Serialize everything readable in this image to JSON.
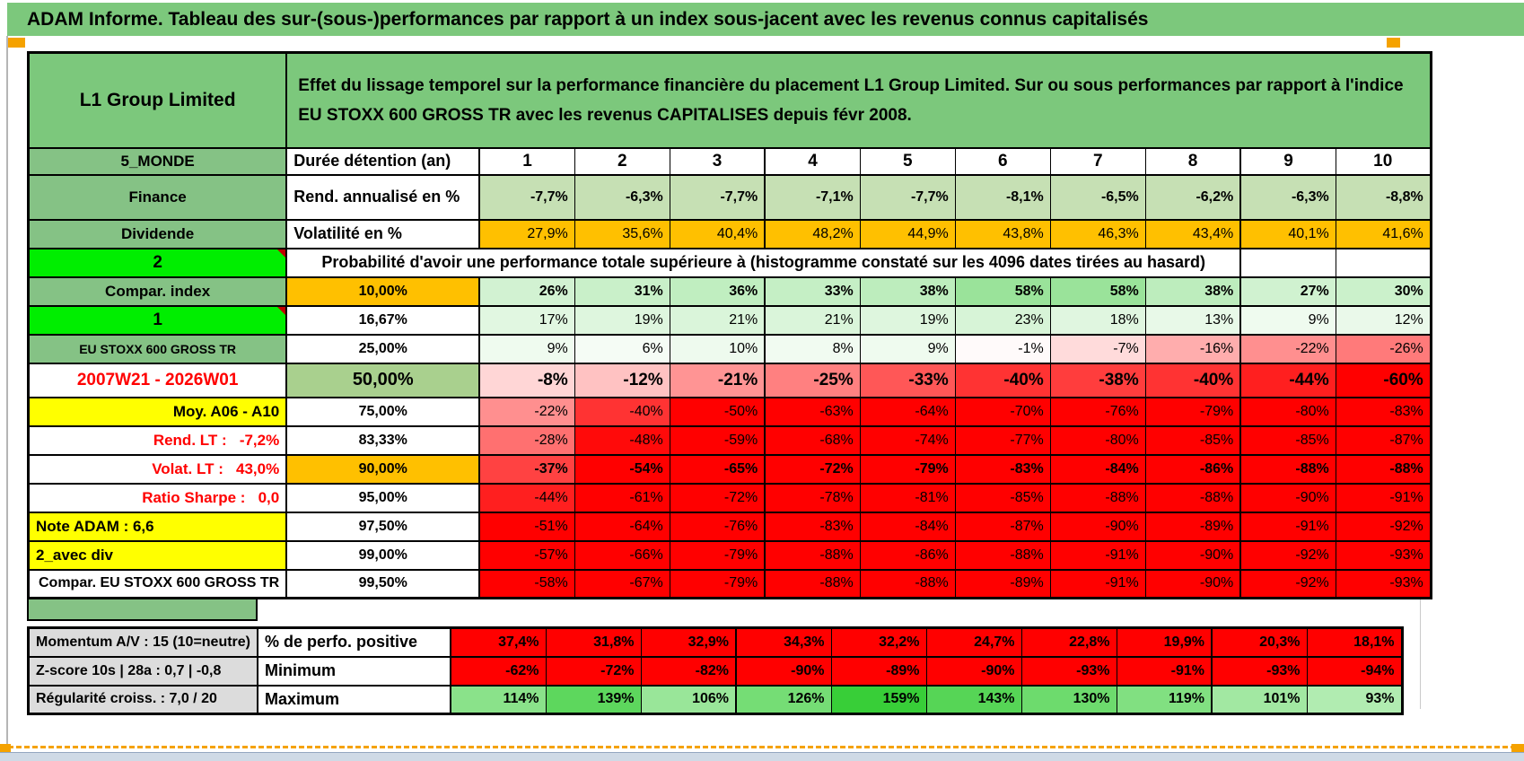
{
  "colors": {
    "hdrGreen": "#7cc87c",
    "labGreen": "#85c285",
    "brightGreen": "#00ee00",
    "olive": "#a9d08e",
    "orange": "#ffc000",
    "yellow": "#ffff00",
    "grayLab": "#dcdcdc",
    "metricGreen": "#c6e0b4",
    "redText": "#ff0000",
    "orangeMark": "#f5a200"
  },
  "title": "ADAM Informe. Tableau des sur-(sous-)performances par rapport à un index sous-jacent avec les revenus connus capitalisés",
  "header": {
    "entity": "L1 Group Limited",
    "description": "Effet du lissage temporel sur la performance financière du placement L1 Group Limited. Sur ou sous performances par rapport à l'indice EU STOXX 600 GROSS TR avec les revenus CAPITALISES depuis févr 2008."
  },
  "columns": {
    "corner": "5_MONDE",
    "duration": "Durée détention (an)",
    "years": [
      "1",
      "2",
      "3",
      "4",
      "5",
      "6",
      "7",
      "8",
      "9",
      "10"
    ]
  },
  "metric_rows": [
    {
      "label": "Finance",
      "metric": "Rend. annualisé en %",
      "shade": "#c6e0b4",
      "bold": true,
      "values": [
        "-7,7%",
        "-6,3%",
        "-7,7%",
        "-7,1%",
        "-7,7%",
        "-8,1%",
        "-6,5%",
        "-6,2%",
        "-6,3%",
        "-8,8%"
      ]
    },
    {
      "label": "Dividende",
      "metric": "Volatilité en %",
      "shade": "#ffc000",
      "bold": false,
      "values": [
        "27,9%",
        "35,6%",
        "40,4%",
        "48,2%",
        "44,9%",
        "43,8%",
        "46,3%",
        "43,4%",
        "40,1%",
        "41,6%"
      ]
    }
  ],
  "probability": {
    "corner": "2",
    "message": "Probabilité d'avoir une performance totale supérieure à (histogramme constaté sur les 4096 dates tirées au hasard)",
    "rows": [
      {
        "label": "Compar. index",
        "label_style": "green",
        "pct": "10,00%",
        "pct_style": "orange",
        "bold": true,
        "values": [
          "26%",
          "31%",
          "36%",
          "33%",
          "38%",
          "58%",
          "58%",
          "38%",
          "27%",
          "30%"
        ]
      },
      {
        "label": "1",
        "label_style": "bright",
        "pct": "16,67%",
        "pct_style": "plain",
        "values": [
          "17%",
          "19%",
          "21%",
          "21%",
          "19%",
          "23%",
          "18%",
          "13%",
          "9%",
          "12%"
        ]
      },
      {
        "label": "EU STOXX 600 GROSS TR",
        "label_style": "green-small",
        "pct": "25,00%",
        "pct_style": "plain",
        "values": [
          "9%",
          "6%",
          "10%",
          "8%",
          "9%",
          "-1%",
          "-7%",
          "-16%",
          "-22%",
          "-26%"
        ]
      },
      {
        "label": "2007W21 - 2026W01",
        "label_style": "red-center",
        "pct": "50,00%",
        "pct_style": "olive-big",
        "bold": true,
        "big": true,
        "values": [
          "-8%",
          "-12%",
          "-21%",
          "-25%",
          "-33%",
          "-40%",
          "-38%",
          "-40%",
          "-44%",
          "-60%"
        ]
      },
      {
        "label": "Moy. A06 - A10",
        "label_style": "yellow-right",
        "pct": "75,00%",
        "pct_style": "plain",
        "values": [
          "-22%",
          "-40%",
          "-50%",
          "-63%",
          "-64%",
          "-70%",
          "-76%",
          "-79%",
          "-80%",
          "-83%"
        ]
      },
      {
        "label": "Rend. LT :   -7,2%",
        "label_style": "red-right",
        "pct": "83,33%",
        "pct_style": "plain",
        "values": [
          "-28%",
          "-48%",
          "-59%",
          "-68%",
          "-74%",
          "-77%",
          "-80%",
          "-85%",
          "-85%",
          "-87%"
        ]
      },
      {
        "label": "Volat. LT :   43,0%",
        "label_style": "red-right",
        "pct": "90,00%",
        "pct_style": "orange",
        "bold": true,
        "values": [
          "-37%",
          "-54%",
          "-65%",
          "-72%",
          "-79%",
          "-83%",
          "-84%",
          "-86%",
          "-88%",
          "-88%"
        ]
      },
      {
        "label": "Ratio Sharpe :   0,0",
        "label_style": "red-right",
        "pct": "95,00%",
        "pct_style": "plain",
        "values": [
          "-44%",
          "-61%",
          "-72%",
          "-78%",
          "-81%",
          "-85%",
          "-88%",
          "-88%",
          "-90%",
          "-91%"
        ]
      },
      {
        "label": "Note ADAM : 6,6",
        "label_style": "yellow-left",
        "pct": "97,50%",
        "pct_style": "plain",
        "values": [
          "-51%",
          "-64%",
          "-76%",
          "-83%",
          "-84%",
          "-87%",
          "-90%",
          "-89%",
          "-91%",
          "-92%"
        ]
      },
      {
        "label": "2_avec div",
        "label_style": "yellow-left",
        "pct": "99,00%",
        "pct_style": "plain",
        "values": [
          "-57%",
          "-66%",
          "-79%",
          "-88%",
          "-86%",
          "-88%",
          "-91%",
          "-90%",
          "-92%",
          "-93%"
        ]
      },
      {
        "label": "Compar. EU STOXX 600 GROSS TR",
        "label_style": "white-left",
        "pct": "99,50%",
        "pct_style": "plain",
        "values": [
          "-58%",
          "-67%",
          "-79%",
          "-88%",
          "-88%",
          "-89%",
          "-91%",
          "-90%",
          "-92%",
          "-93%"
        ]
      }
    ]
  },
  "footer": {
    "rows": [
      {
        "label": "Momentum A/V : 15 (10=neutre)",
        "metric": "% de perfo. positive",
        "shade": "red",
        "bold": true,
        "values": [
          "37,4%",
          "31,8%",
          "32,9%",
          "34,3%",
          "32,2%",
          "24,7%",
          "22,8%",
          "19,9%",
          "20,3%",
          "18,1%"
        ]
      },
      {
        "label": "Z-score 10s | 28a : 0,7 | -0,8",
        "metric": "Minimum",
        "shade": "red",
        "bold": true,
        "values": [
          "-62%",
          "-72%",
          "-82%",
          "-90%",
          "-89%",
          "-90%",
          "-93%",
          "-91%",
          "-93%",
          "-94%"
        ]
      },
      {
        "label": "Régularité croiss. : 7,0 / 20",
        "metric": "Maximum",
        "shade": "maxgreen",
        "bold": true,
        "values": [
          "114%",
          "139%",
          "106%",
          "126%",
          "159%",
          "143%",
          "130%",
          "119%",
          "101%",
          "93%"
        ]
      }
    ]
  }
}
